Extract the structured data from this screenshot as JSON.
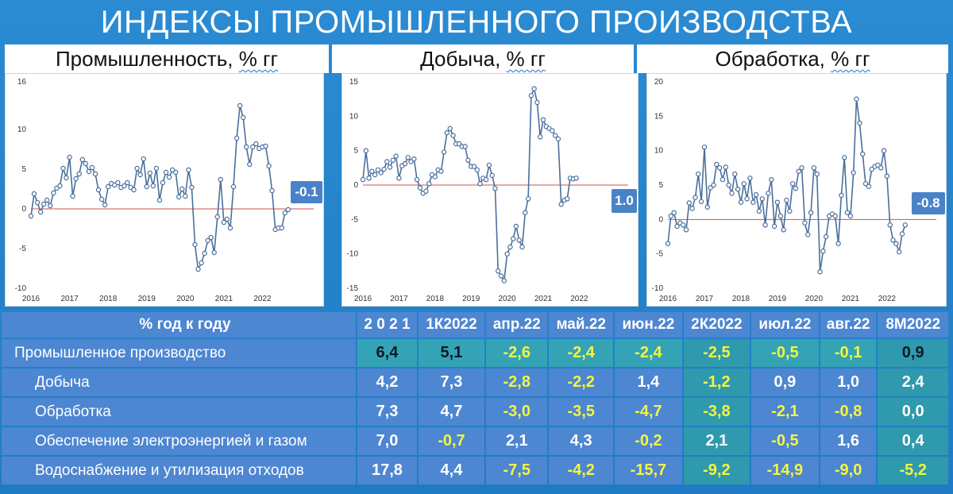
{
  "title": "ИНДЕКСЫ ПРОМЫШЛЕННОГО ПРОИЗВОДСТВА",
  "colors": {
    "background": "#1f7cc4",
    "line": "#4a6f9c",
    "zero_line": "#d05050",
    "badge": "#4a82c8",
    "highlight_yellow": "#f3f542"
  },
  "panels": [
    {
      "subtitle_main": "Промышленность,",
      "subtitle_unit": "% гг",
      "badge": "-0.1"
    },
    {
      "subtitle_main": "Добыча,",
      "subtitle_unit": "% гг",
      "badge": "1.0"
    },
    {
      "subtitle_main": "Обработка,",
      "subtitle_unit": "% гг",
      "badge": "-0.8"
    }
  ],
  "chart_data": [
    {
      "type": "line",
      "title": "Промышленность, % гг",
      "x_start": "2016-01",
      "x_step": "month",
      "x_tick_labels": [
        "2016",
        "2017",
        "2018",
        "2019",
        "2020",
        "2021",
        "2022"
      ],
      "ylim": [
        -10,
        16
      ],
      "y_ticks": [
        -10,
        -5,
        0,
        5,
        10,
        16
      ],
      "zero_line": true,
      "end_label": "-0.1",
      "values": [
        -0.9,
        1.9,
        0.8,
        -0.4,
        0.6,
        1.1,
        0.4,
        2.0,
        2.6,
        2.9,
        5.1,
        3.9,
        6.5,
        1.6,
        3.8,
        4.4,
        6.2,
        5.7,
        4.7,
        5.2,
        4.4,
        2.4,
        1.2,
        0.5,
        2.8,
        3.2,
        3.0,
        3.3,
        2.7,
        2.9,
        3.3,
        2.7,
        2.4,
        5.1,
        4.3,
        6.3,
        2.8,
        4.5,
        2.9,
        5.1,
        1.1,
        3.3,
        4.6,
        4.0,
        4.9,
        4.6,
        1.5,
        2.5,
        1.6,
        4.9,
        2.7,
        -4.5,
        -7.6,
        -6.8,
        -5.6,
        -4.0,
        -3.6,
        -5.5,
        -1.0,
        3.7,
        -1.7,
        -1.3,
        -2.4,
        2.8,
        8.9,
        13.0,
        11.5,
        7.8,
        5.6,
        7.8,
        8.2,
        7.6,
        7.8,
        7.9,
        5.4,
        2.3,
        -2.6,
        -2.4,
        -2.4,
        -0.5,
        -0.1
      ]
    },
    {
      "type": "line",
      "title": "Добыча, % гг",
      "x_start": "2016-01",
      "x_step": "month",
      "x_tick_labels": [
        "2016",
        "2017",
        "2018",
        "2019",
        "2020",
        "2021",
        "2022"
      ],
      "ylim": [
        -15,
        15
      ],
      "y_ticks": [
        -15,
        -10,
        -5,
        0,
        5,
        10,
        15
      ],
      "zero_line": true,
      "end_label": "1.0",
      "values": [
        0.8,
        5.0,
        1.0,
        2.0,
        1.5,
        2.2,
        1.8,
        2.3,
        3.4,
        2.6,
        3.6,
        4.2,
        1.0,
        2.8,
        3.1,
        4.0,
        3.4,
        3.8,
        0.8,
        -0.4,
        -1.2,
        -0.9,
        0.2,
        1.5,
        1.2,
        2.2,
        2.0,
        4.8,
        7.6,
        8.2,
        7.2,
        6.0,
        6.0,
        5.6,
        5.6,
        3.6,
        2.7,
        2.7,
        2.2,
        0.2,
        1.0,
        0.8,
        2.9,
        1.4,
        -0.5,
        -12.5,
        -13.2,
        -13.9,
        -10.0,
        -9.0,
        -7.8,
        -6.0,
        -8.0,
        -9.0,
        -4.0,
        -2.0,
        13.0,
        14.0,
        12.0,
        7.0,
        9.5,
        8.5,
        8.2,
        7.9,
        7.2,
        6.7,
        -2.8,
        -2.2,
        -2.0,
        1.0,
        0.9,
        1.0
      ]
    },
    {
      "type": "line",
      "title": "Обработка, % гг",
      "x_start": "2016-01",
      "x_step": "month",
      "x_tick_labels": [
        "2016",
        "2017",
        "2018",
        "2019",
        "2020",
        "2021",
        "2022"
      ],
      "ylim": [
        -10,
        20
      ],
      "y_ticks": [
        -10,
        -5,
        0,
        5,
        10,
        15,
        20
      ],
      "zero_line": true,
      "end_label": "-0.8",
      "values": [
        -3.5,
        0.5,
        1.0,
        -1.0,
        -0.5,
        -0.8,
        -1.5,
        2.4,
        1.6,
        3.2,
        6.6,
        2.6,
        10.5,
        1.8,
        4.6,
        5.0,
        8.0,
        7.5,
        5.8,
        7.6,
        5.0,
        3.8,
        6.6,
        4.4,
        2.5,
        5.2,
        3.0,
        6.0,
        2.5,
        3.6,
        1.2,
        3.0,
        -0.8,
        3.8,
        5.8,
        -1.0,
        2.5,
        0.5,
        -1.5,
        2.8,
        1.2,
        5.2,
        4.5,
        7.0,
        7.5,
        -0.5,
        -2.2,
        1.0,
        7.5,
        6.6,
        -7.6,
        -4.6,
        -2.5,
        0.5,
        0.8,
        0.5,
        -3.5,
        3.5,
        9.0,
        1.0,
        0.5,
        6.8,
        17.5,
        14.0,
        9.5,
        5.2,
        4.8,
        7.3,
        7.7,
        7.9,
        7.5,
        10.0,
        6.3,
        -0.8,
        -3.0,
        -3.5,
        -4.7,
        -2.1,
        -0.8
      ]
    }
  ],
  "table": {
    "header": [
      "% год к году",
      "2 0 2 1",
      "1К2022",
      "апр.22",
      "май.22",
      "июн.22",
      "2К2022",
      "июл.22",
      "авг.22",
      "8М2022"
    ],
    "rows": [
      {
        "label": "Промышленное производство",
        "values": [
          "6,4",
          "5,1",
          "-2,6",
          "-2,4",
          "-2,4",
          "-2,5",
          "-0,5",
          "-0,1",
          "0,9"
        ]
      },
      {
        "label": "Добыча",
        "values": [
          "4,2",
          "7,3",
          "-2,8",
          "-2,2",
          "1,4",
          "-1,2",
          "0,9",
          "1,0",
          "2,4"
        ]
      },
      {
        "label": "Обработка",
        "values": [
          "7,3",
          "4,7",
          "-3,0",
          "-3,5",
          "-4,7",
          "-3,8",
          "-2,1",
          "-0,8",
          "0,0"
        ]
      },
      {
        "label": "Обеспечение электроэнергией и газом",
        "values": [
          "7,0",
          "-0,7",
          "2,1",
          "4,3",
          "-0,2",
          "2,1",
          "-0,5",
          "1,6",
          "0,4"
        ]
      },
      {
        "label": "Водоснабжение и утилизация отходов",
        "values": [
          "17,8",
          "4,4",
          "-7,5",
          "-4,2",
          "-15,7",
          "-9,2",
          "-14,9",
          "-9,0",
          "-5,2"
        ]
      }
    ]
  }
}
